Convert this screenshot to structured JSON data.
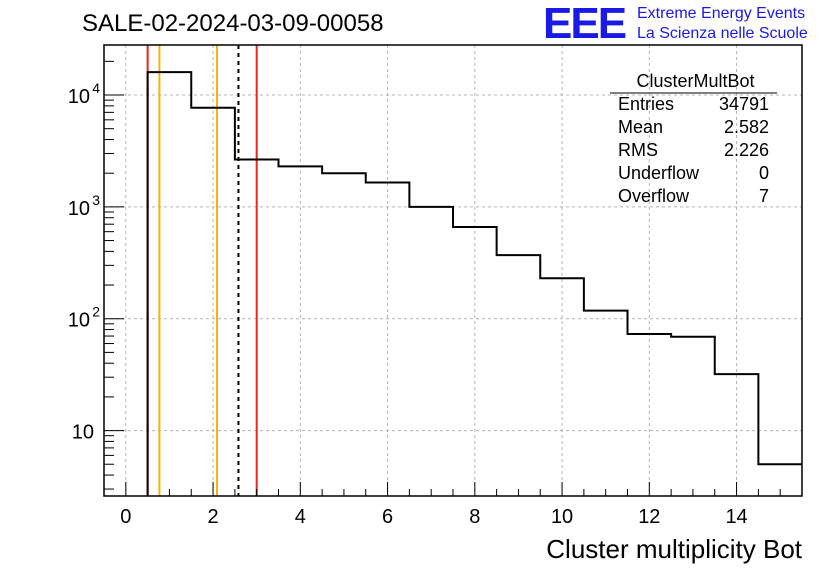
{
  "title": "SALE-02-2024-03-09-00058",
  "logo": {
    "mark": "EEE",
    "line1": "Extreme Energy Events",
    "line2": "La Scienza nelle Scuole"
  },
  "stats": {
    "name": "ClusterMultBot",
    "rows": [
      {
        "label": "Entries",
        "value": "34791"
      },
      {
        "label": "Mean",
        "value": "2.582"
      },
      {
        "label": "RMS",
        "value": "2.226"
      },
      {
        "label": "Underflow",
        "value": "0"
      },
      {
        "label": "Overflow",
        "value": "7"
      }
    ]
  },
  "chart_data": {
    "type": "histogram",
    "xlabel": "Cluster multiplicity Bot",
    "ylabel": "",
    "xlim": [
      -0.5,
      15.5
    ],
    "ylim": [
      2.6,
      28000
    ],
    "log_y": true,
    "grid": true,
    "x_ticks": [
      "0",
      "2",
      "4",
      "6",
      "8",
      "10",
      "12",
      "14"
    ],
    "y_ticks": [
      {
        "value": 10,
        "base": "10",
        "exp": ""
      },
      {
        "value": 100,
        "base": "10",
        "exp": "2"
      },
      {
        "value": 1000,
        "base": "10",
        "exp": "3"
      },
      {
        "value": 10000,
        "base": "10",
        "exp": "4"
      }
    ],
    "bins": [
      {
        "low": 0.5,
        "high": 1.5,
        "count": 16000
      },
      {
        "low": 1.5,
        "high": 2.5,
        "count": 7700
      },
      {
        "low": 2.5,
        "high": 3.5,
        "count": 2650
      },
      {
        "low": 3.5,
        "high": 4.5,
        "count": 2300
      },
      {
        "low": 4.5,
        "high": 5.5,
        "count": 2000
      },
      {
        "low": 5.5,
        "high": 6.5,
        "count": 1650
      },
      {
        "low": 6.5,
        "high": 7.5,
        "count": 1000
      },
      {
        "low": 7.5,
        "high": 8.5,
        "count": 660
      },
      {
        "low": 8.5,
        "high": 9.5,
        "count": 370
      },
      {
        "low": 9.5,
        "high": 10.5,
        "count": 230
      },
      {
        "low": 10.5,
        "high": 11.5,
        "count": 118
      },
      {
        "low": 11.5,
        "high": 12.5,
        "count": 73
      },
      {
        "low": 12.5,
        "high": 13.5,
        "count": 69
      },
      {
        "low": 13.5,
        "high": 14.5,
        "count": 32
      },
      {
        "low": 14.5,
        "high": 15.5,
        "count": 5
      }
    ],
    "markers": [
      {
        "x": 0.5,
        "color": "#e8281e",
        "style": "solid"
      },
      {
        "x": 0.77,
        "color": "#f5b40a",
        "style": "solid"
      },
      {
        "x": 2.09,
        "color": "#f5b40a",
        "style": "solid"
      },
      {
        "x": 2.582,
        "color": "#000000",
        "style": "dashed"
      },
      {
        "x": 3.0,
        "color": "#e8281e",
        "style": "solid"
      }
    ]
  }
}
